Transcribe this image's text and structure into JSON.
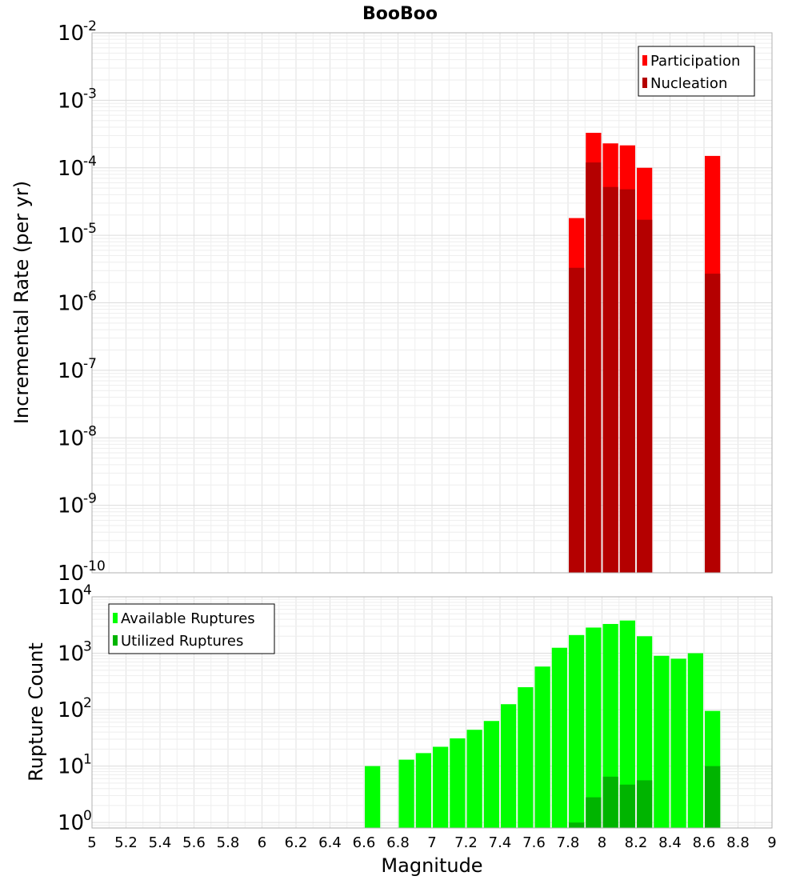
{
  "chart_data": [
    {
      "type": "bar",
      "title": "BooBoo",
      "xlabel": "Magnitude",
      "ylabel": "Incremental Rate (per yr)",
      "yscale": "log",
      "xlim": [
        5,
        9
      ],
      "ylim": [
        1e-10,
        0.01
      ],
      "grid": true,
      "legend_position": "top-right",
      "legend": [
        "Participation",
        "Nucleation"
      ],
      "colors": {
        "Participation": "#ff0000",
        "Nucleation": "#b40000"
      },
      "bin_width": 0.1,
      "series": [
        {
          "name": "Participation",
          "x": [
            7.85,
            7.95,
            8.05,
            8.15,
            8.25,
            8.65
          ],
          "values": [
            1.8e-05,
            0.00033,
            0.00023,
            0.000215,
            0.0001,
            0.00015
          ]
        },
        {
          "name": "Nucleation",
          "x": [
            7.85,
            7.95,
            8.05,
            8.15,
            8.25,
            8.65
          ],
          "values": [
            3.3e-06,
            0.00012,
            5.2e-05,
            4.8e-05,
            1.7e-05,
            2.7e-06
          ]
        }
      ],
      "ytick_base": "10",
      "yticks_exp": [
        "-10",
        "-9",
        "-8",
        "-7",
        "-6",
        "-5",
        "-4",
        "-3",
        "-2"
      ]
    },
    {
      "type": "bar",
      "xlabel": "Magnitude",
      "ylabel": "Rupture Count",
      "yscale": "log",
      "xlim": [
        5,
        9
      ],
      "ylim": [
        0.8,
        10000
      ],
      "grid": true,
      "legend_position": "top-left",
      "legend": [
        "Available Ruptures",
        "Utilized Ruptures"
      ],
      "colors": {
        "Available Ruptures": "#00ff00",
        "Utilized Ruptures": "#00b400"
      },
      "bin_width": 0.1,
      "series": [
        {
          "name": "Available Ruptures",
          "x": [
            6.65,
            6.85,
            6.95,
            7.05,
            7.15,
            7.25,
            7.35,
            7.45,
            7.55,
            7.65,
            7.75,
            7.85,
            7.95,
            8.05,
            8.15,
            8.25,
            8.35,
            8.45,
            8.55,
            8.65
          ],
          "values": [
            10,
            13,
            17,
            22,
            31,
            44,
            63,
            125,
            250,
            580,
            1250,
            2100,
            2850,
            3300,
            3800,
            2000,
            900,
            800,
            1000,
            95
          ]
        },
        {
          "name": "Utilized Ruptures",
          "x": [
            7.85,
            7.95,
            8.05,
            8.15,
            8.25,
            8.65
          ],
          "values": [
            1,
            2.8,
            6.5,
            4.7,
            5.6,
            10
          ]
        }
      ],
      "xticks": [
        "5",
        "5.2",
        "5.4",
        "5.6",
        "5.8",
        "6",
        "6.2",
        "6.4",
        "6.6",
        "6.8",
        "7",
        "7.2",
        "7.4",
        "7.6",
        "7.8",
        "8",
        "8.2",
        "8.4",
        "8.6",
        "8.8",
        "9"
      ],
      "ytick_base": "10",
      "yticks_exp": [
        "0",
        "1",
        "2",
        "3",
        "4"
      ]
    }
  ]
}
